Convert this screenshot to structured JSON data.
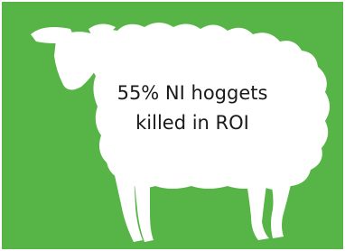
{
  "infographic": {
    "lines": [
      "55% NI hoggets",
      "killed in ROI"
    ]
  }
}
